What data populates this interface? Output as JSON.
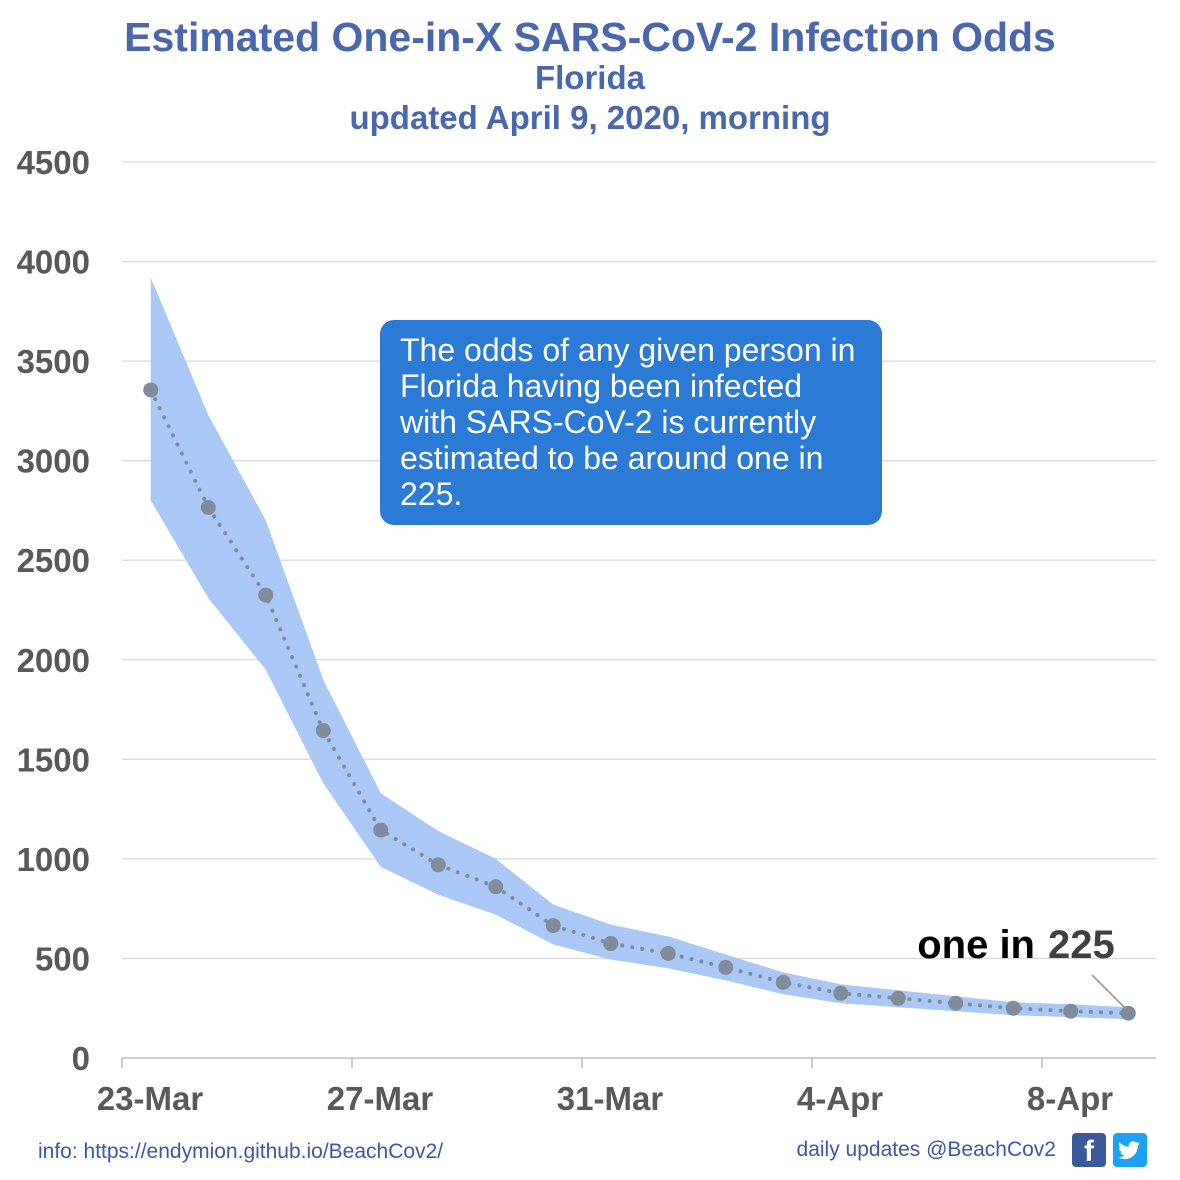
{
  "title": "Estimated One-in-X SARS-CoV-2 Infection Odds",
  "subtitle": "Florida",
  "updated": "updated April 9, 2020, morning",
  "callout": "The odds of any given person in Florida having been infected with SARS-CoV-2 is currently estimated to be around one in 225.",
  "annotation": {
    "prefix": "one in",
    "value": "225"
  },
  "footer": {
    "info": "info: https://endymion.github.io/BeachCov2/",
    "updates": "daily updates @BeachCov2"
  },
  "icons": [
    "facebook-icon",
    "twitter-icon"
  ],
  "colors": {
    "title": "#4a66ad",
    "band": "#aac8f5",
    "points": "#808c99",
    "callout_bg": "#2a7ad6",
    "grid": "#d9d9d9",
    "axis_text": "#595959"
  },
  "chart_data": {
    "type": "line",
    "x": [
      "2020-03-23",
      "2020-03-24",
      "2020-03-25",
      "2020-03-26",
      "2020-03-27",
      "2020-03-28",
      "2020-03-29",
      "2020-03-30",
      "2020-03-31",
      "2020-04-01",
      "2020-04-02",
      "2020-04-03",
      "2020-04-04",
      "2020-04-05",
      "2020-04-06",
      "2020-04-07",
      "2020-04-08",
      "2020-04-09"
    ],
    "series": [
      {
        "values": [
          3355,
          2765,
          2325,
          1645,
          1145,
          970,
          860,
          665,
          575,
          525,
          455,
          380,
          325,
          300,
          275,
          250,
          235,
          225
        ]
      }
    ],
    "band_upper": [
      3920,
      3230,
      2700,
      1900,
      1330,
      1140,
      1000,
      770,
      670,
      610,
      520,
      430,
      370,
      340,
      310,
      280,
      270,
      255
    ],
    "band_lower": [
      2800,
      2310,
      1950,
      1380,
      960,
      820,
      720,
      570,
      495,
      450,
      390,
      320,
      275,
      255,
      235,
      215,
      205,
      195
    ],
    "xticks": [
      "23-Mar",
      "27-Mar",
      "31-Mar",
      "4-Apr",
      "8-Apr"
    ],
    "ylim": [
      0,
      4500
    ],
    "yticks": [
      0,
      500,
      1000,
      1500,
      2000,
      2500,
      3000,
      3500,
      4000,
      4500
    ],
    "grid": true,
    "legend": "none"
  }
}
